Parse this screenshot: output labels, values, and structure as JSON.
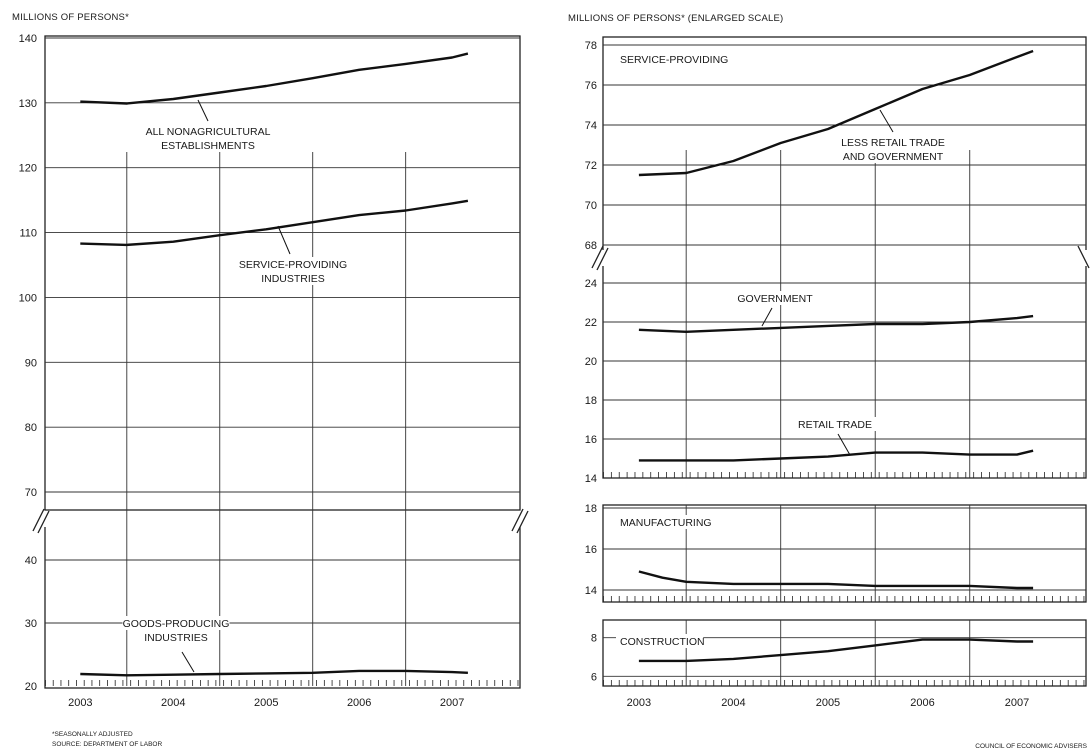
{
  "left_panel": {
    "unit_label": "MILLIONS OF PERSONS*"
  },
  "right_panel": {
    "unit_label": "MILLIONS OF PERSONS* (ENLARGED SCALE)"
  },
  "footnotes": {
    "seasonal": "*SEASONALLY ADJUSTED",
    "source": "SOURCE: DEPARTMENT OF LABOR",
    "credit": "COUNCIL OF ECONOMIC ADVISERS"
  },
  "chart_data": [
    {
      "id": "total",
      "type": "line",
      "panel": "left",
      "unit_label": "MILLIONS OF PERSONS*",
      "x_categories": [
        "2003",
        "2004",
        "2005",
        "2006",
        "2007"
      ],
      "y_ticks": [
        20,
        30,
        40,
        70,
        80,
        90,
        100,
        110,
        120,
        130,
        140
      ],
      "axis_break": {
        "from": 40,
        "to": 70
      },
      "grid": true,
      "series": [
        {
          "name": "ALL NONAGRICULTURAL ESTABLISHMENTS",
          "label_lines": [
            "ALL NONAGRICULTURAL",
            "ESTABLISHMENTS"
          ],
          "x": [
            2003.0,
            2003.5,
            2004.0,
            2004.5,
            2005.0,
            2005.5,
            2006.0,
            2006.5,
            2007.0,
            2007.17
          ],
          "values": [
            130.2,
            129.9,
            130.6,
            131.6,
            132.6,
            133.8,
            135.1,
            136.0,
            137.0,
            137.6
          ]
        },
        {
          "name": "SERVICE-PROVIDING INDUSTRIES",
          "label_lines": [
            "SERVICE-PROVIDING",
            "INDUSTRIES"
          ],
          "x": [
            2003.0,
            2003.5,
            2004.0,
            2004.5,
            2005.0,
            2005.5,
            2006.0,
            2006.5,
            2007.0,
            2007.17
          ],
          "values": [
            108.3,
            108.1,
            108.6,
            109.6,
            110.5,
            111.6,
            112.7,
            113.4,
            114.5,
            114.9
          ]
        },
        {
          "name": "GOODS-PRODUCING INDUSTRIES",
          "label_lines": [
            "GOODS-PRODUCING",
            "INDUSTRIES"
          ],
          "x": [
            2003.0,
            2003.5,
            2004.0,
            2004.5,
            2005.0,
            2005.5,
            2006.0,
            2006.5,
            2007.0,
            2007.17
          ],
          "values": [
            21.9,
            21.7,
            21.8,
            21.9,
            22.0,
            22.1,
            22.4,
            22.4,
            22.2,
            22.1
          ]
        }
      ]
    },
    {
      "id": "services-detail",
      "type": "line",
      "panel": "right",
      "unit_label": "MILLIONS OF PERSONS* (ENLARGED SCALE)",
      "y_ticks": [
        14,
        16,
        18,
        20,
        22,
        24,
        68,
        70,
        72,
        74,
        76,
        78
      ],
      "axis_break": {
        "from": 24,
        "to": 68
      },
      "grid": true,
      "series": [
        {
          "name": "LESS RETAIL TRADE AND GOVERNMENT",
          "group_title": "SERVICE-PROVIDING",
          "label_lines": [
            "LESS RETAIL TRADE",
            "AND GOVERNMENT"
          ],
          "x": [
            2003.0,
            2003.5,
            2004.0,
            2004.5,
            2005.0,
            2005.5,
            2006.0,
            2006.5,
            2007.0,
            2007.17
          ],
          "values": [
            71.5,
            71.6,
            72.2,
            73.1,
            73.8,
            74.8,
            75.8,
            76.5,
            77.4,
            77.7
          ]
        },
        {
          "name": "GOVERNMENT",
          "label_lines": [
            "GOVERNMENT"
          ],
          "x": [
            2003.0,
            2003.5,
            2004.0,
            2004.5,
            2005.0,
            2005.5,
            2006.0,
            2006.5,
            2007.0,
            2007.17
          ],
          "values": [
            21.6,
            21.5,
            21.6,
            21.7,
            21.8,
            21.9,
            21.9,
            22.0,
            22.2,
            22.3
          ]
        },
        {
          "name": "RETAIL TRADE",
          "label_lines": [
            "RETAIL TRADE"
          ],
          "x": [
            2003.0,
            2003.5,
            2004.0,
            2004.5,
            2005.0,
            2005.5,
            2006.0,
            2006.5,
            2007.0,
            2007.17
          ],
          "values": [
            14.9,
            14.9,
            14.9,
            15.0,
            15.1,
            15.3,
            15.3,
            15.2,
            15.2,
            15.4
          ]
        }
      ]
    },
    {
      "id": "manufacturing",
      "type": "line",
      "panel": "right",
      "title": "MANUFACTURING",
      "y_ticks": [
        14,
        16,
        18
      ],
      "grid": true,
      "series": [
        {
          "name": "MANUFACTURING",
          "x": [
            2003.0,
            2003.25,
            2003.5,
            2004.0,
            2004.5,
            2005.0,
            2005.5,
            2006.0,
            2006.5,
            2007.0,
            2007.17
          ],
          "values": [
            14.9,
            14.6,
            14.4,
            14.3,
            14.3,
            14.3,
            14.2,
            14.2,
            14.2,
            14.1,
            14.1
          ]
        }
      ]
    },
    {
      "id": "construction",
      "type": "line",
      "panel": "right",
      "title": "CONSTRUCTION",
      "x_categories": [
        "2003",
        "2004",
        "2005",
        "2006",
        "2007"
      ],
      "y_ticks": [
        6,
        8
      ],
      "grid": true,
      "series": [
        {
          "name": "CONSTRUCTION",
          "x": [
            2003.0,
            2003.5,
            2004.0,
            2004.5,
            2005.0,
            2005.5,
            2006.0,
            2006.5,
            2007.0,
            2007.17
          ],
          "values": [
            6.8,
            6.8,
            6.9,
            7.1,
            7.3,
            7.6,
            7.9,
            7.9,
            7.8,
            7.8
          ]
        }
      ]
    }
  ]
}
